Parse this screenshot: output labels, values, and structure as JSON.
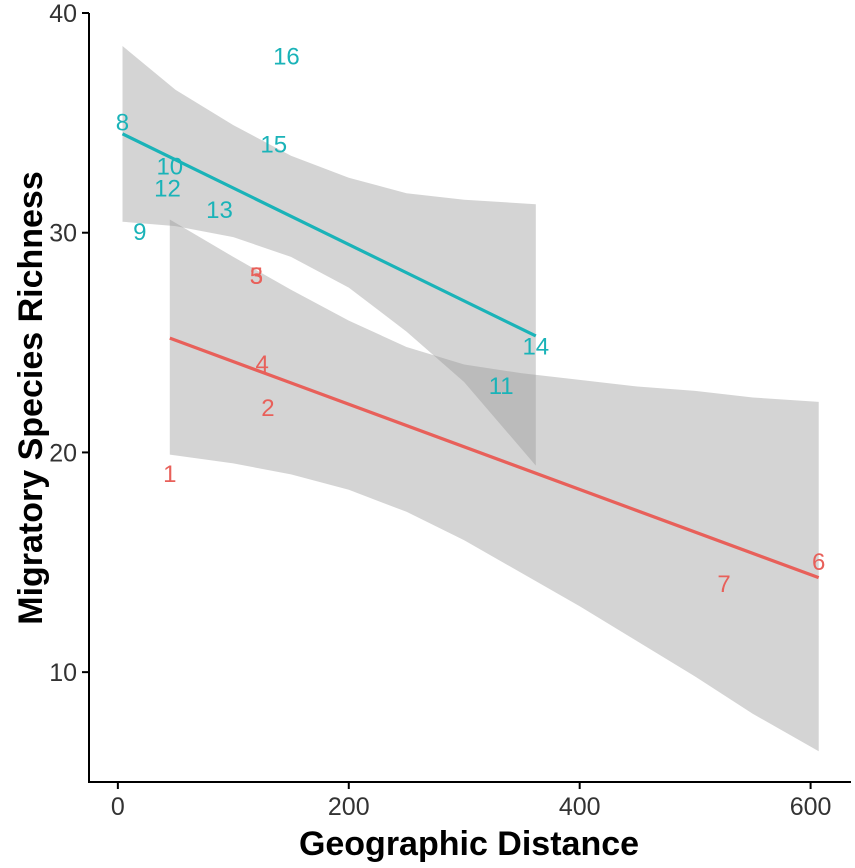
{
  "chart_data": {
    "type": "scatter",
    "xlabel": "Geographic Distance",
    "ylabel": "Migratory Species Richness",
    "xlim": [
      -25,
      635
    ],
    "ylim": [
      5,
      40
    ],
    "x_ticks": [
      0,
      200,
      400,
      600
    ],
    "y_ticks": [
      10,
      20,
      30,
      40
    ],
    "grid": false,
    "legend": "none",
    "series": [
      {
        "color": "#e8605a",
        "points": [
          {
            "label": "1",
            "x": 45,
            "y": 19
          },
          {
            "label": "2",
            "x": 130,
            "y": 22
          },
          {
            "label": "3",
            "x": 120,
            "y": 28
          },
          {
            "label": "4",
            "x": 125,
            "y": 24
          },
          {
            "label": "5",
            "x": 120,
            "y": 28
          },
          {
            "label": "6",
            "x": 607,
            "y": 15
          },
          {
            "label": "7",
            "x": 525,
            "y": 14
          }
        ],
        "fit": {
          "x": [
            45,
            607
          ],
          "y": [
            25.2,
            14.3
          ]
        },
        "ci_band": {
          "x": [
            45,
            100,
            150,
            200,
            250,
            300,
            350,
            400,
            450,
            500,
            550,
            607
          ],
          "lower": [
            19.9,
            19.5,
            19.0,
            18.3,
            17.3,
            16.0,
            14.5,
            13.0,
            11.4,
            9.8,
            8.1,
            6.4
          ],
          "upper": [
            30.6,
            28.9,
            27.4,
            26.0,
            24.8,
            24.0,
            23.6,
            23.3,
            23.0,
            22.8,
            22.5,
            22.3
          ]
        }
      },
      {
        "color": "#1ab3b8",
        "points": [
          {
            "label": "8",
            "x": 4,
            "y": 35
          },
          {
            "label": "9",
            "x": 19,
            "y": 30
          },
          {
            "label": "10",
            "x": 45,
            "y": 33
          },
          {
            "label": "11",
            "x": 332,
            "y": 23
          },
          {
            "label": "12",
            "x": 43,
            "y": 32
          },
          {
            "label": "13",
            "x": 88,
            "y": 31
          },
          {
            "label": "14",
            "x": 362,
            "y": 24.8
          },
          {
            "label": "15",
            "x": 135,
            "y": 34
          },
          {
            "label": "16",
            "x": 146,
            "y": 38
          }
        ],
        "fit": {
          "x": [
            4,
            362
          ],
          "y": [
            34.5,
            25.3
          ]
        },
        "ci_band": {
          "x": [
            4,
            50,
            100,
            150,
            200,
            250,
            300,
            362
          ],
          "lower": [
            30.5,
            30.3,
            29.8,
            28.9,
            27.5,
            25.5,
            23.2,
            19.4
          ],
          "upper": [
            38.5,
            36.5,
            34.9,
            33.5,
            32.5,
            31.8,
            31.5,
            31.3
          ]
        }
      }
    ]
  }
}
